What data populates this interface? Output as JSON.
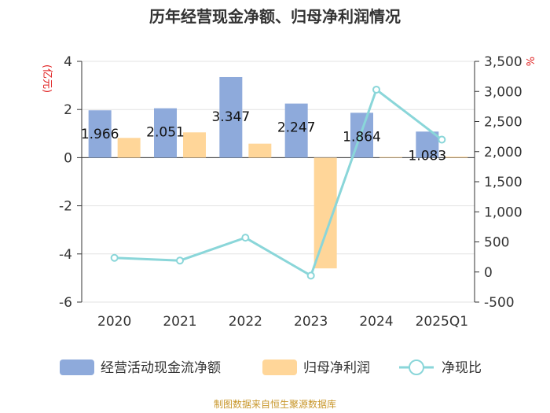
{
  "chart_data": {
    "type": "bar",
    "title": "历年经营现金净额、归母净利润情况",
    "categories": [
      "2020",
      "2021",
      "2022",
      "2023",
      "2024",
      "2025Q1"
    ],
    "series": [
      {
        "name": "经营活动现金流净额",
        "kind": "bar",
        "axis": "left",
        "color": "#8eaadb",
        "values": [
          1.966,
          2.051,
          3.347,
          2.247,
          1.864,
          1.083
        ]
      },
      {
        "name": "归母净利润",
        "kind": "bar",
        "axis": "left",
        "color": "#ffd699",
        "values": [
          0.82,
          1.05,
          0.58,
          -4.6,
          0.03,
          0.04
        ]
      },
      {
        "name": "净现比",
        "kind": "line",
        "axis": "right",
        "color": "#8ad6d9",
        "values": [
          235,
          190,
          570,
          -60,
          3030,
          2200
        ]
      }
    ],
    "data_labels": [
      "1.966",
      "2.051",
      "3.347",
      "2.247",
      "1.864",
      "1.083"
    ],
    "left_axis": {
      "unit": "(亿元)",
      "min": -6,
      "max": 4,
      "ticks": [
        4,
        2,
        0,
        -2,
        -4,
        -6
      ],
      "tick_labels": [
        "4",
        "2",
        "0",
        "-2",
        "-4",
        "-6"
      ]
    },
    "right_axis": {
      "unit": "%",
      "min": -500,
      "max": 3500,
      "ticks": [
        3500,
        3000,
        2500,
        2000,
        1500,
        1000,
        500,
        0,
        -500
      ],
      "tick_labels": [
        "3,500",
        "3,000",
        "2,500",
        "2,000",
        "1,500",
        "1,000",
        "500",
        "0",
        "-500"
      ]
    },
    "legend": [
      "经营活动现金流净额",
      "归母净利润",
      "净现比"
    ],
    "source": "制图数据来自恒生聚源数据库",
    "grid": true
  }
}
